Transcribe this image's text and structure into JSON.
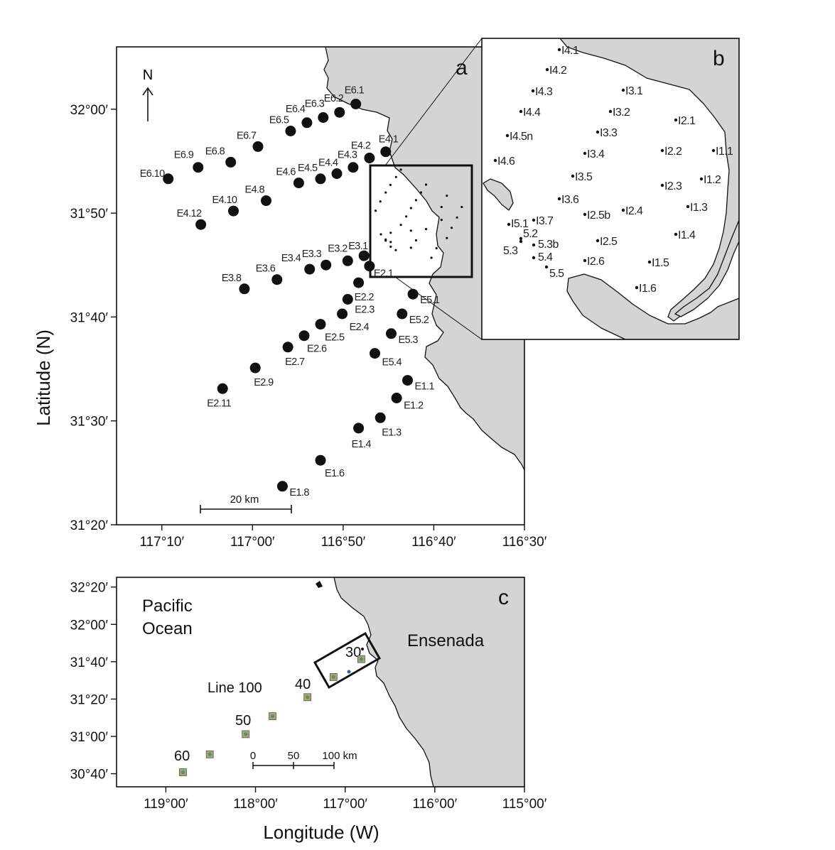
{
  "panel_a": {
    "label": "a",
    "north": "N",
    "ylabel": "Latitude (N)",
    "lat_ticks": [
      "32°00′",
      "31°50′",
      "31°40′",
      "31°30′",
      "31°20′"
    ],
    "lon_ticks": [
      "117°10′",
      "117°00′",
      "116°50′",
      "116°40′",
      "116°30′"
    ],
    "scale_label": "20 km",
    "stations": [
      {
        "id": "E6.1",
        "lon": -116.81,
        "lat": 32.0083
      },
      {
        "id": "E6.2",
        "lon": -116.84,
        "lat": 31.995
      },
      {
        "id": "E6.3",
        "lon": -116.87,
        "lat": 31.9867
      },
      {
        "id": "E6.4",
        "lon": -116.9,
        "lat": 31.9783
      },
      {
        "id": "E6.5",
        "lon": -116.93,
        "lat": 31.965
      },
      {
        "id": "E6.7",
        "lon": -116.99,
        "lat": 31.94
      },
      {
        "id": "E6.8",
        "lon": -117.04,
        "lat": 31.915
      },
      {
        "id": "E6.9",
        "lon": -117.1,
        "lat": 31.9067
      },
      {
        "id": "E6.10",
        "lon": -117.155,
        "lat": 31.8883
      },
      {
        "id": "E4.1",
        "lon": -116.755,
        "lat": 31.9317
      },
      {
        "id": "E4.2",
        "lon": -116.785,
        "lat": 31.9217
      },
      {
        "id": "E4.3",
        "lon": -116.815,
        "lat": 31.9067
      },
      {
        "id": "E4.4",
        "lon": -116.845,
        "lat": 31.8967
      },
      {
        "id": "E4.5",
        "lon": -116.875,
        "lat": 31.8883
      },
      {
        "id": "E4.6",
        "lon": -116.915,
        "lat": 31.8817
      },
      {
        "id": "E4.8",
        "lon": -116.975,
        "lat": 31.8533
      },
      {
        "id": "E4.10",
        "lon": -117.035,
        "lat": 31.8367
      },
      {
        "id": "E4.12",
        "lon": -117.095,
        "lat": 31.815
      },
      {
        "id": "E3.1",
        "lon": -116.795,
        "lat": 31.765
      },
      {
        "id": "E3.2",
        "lon": -116.825,
        "lat": 31.7567
      },
      {
        "id": "E3.3",
        "lon": -116.865,
        "lat": 31.75
      },
      {
        "id": "E3.4",
        "lon": -116.895,
        "lat": 31.7433
      },
      {
        "id": "E3.6",
        "lon": -116.955,
        "lat": 31.7267
      },
      {
        "id": "E3.8",
        "lon": -117.015,
        "lat": 31.7117
      },
      {
        "id": "E2.1",
        "lon": -116.785,
        "lat": 31.7483
      },
      {
        "id": "E2.2",
        "lon": -116.805,
        "lat": 31.7217
      },
      {
        "id": "E2.3",
        "lon": -116.825,
        "lat": 31.695
      },
      {
        "id": "E2.4",
        "lon": -116.835,
        "lat": 31.6717
      },
      {
        "id": "E2.5",
        "lon": -116.875,
        "lat": 31.655
      },
      {
        "id": "E2.6",
        "lon": -116.905,
        "lat": 31.6367
      },
      {
        "id": "E2.7",
        "lon": -116.935,
        "lat": 31.6183
      },
      {
        "id": "E2.9",
        "lon": -116.995,
        "lat": 31.585
      },
      {
        "id": "E2.11",
        "lon": -117.055,
        "lat": 31.5517
      },
      {
        "id": "E5.1",
        "lon": -116.705,
        "lat": 31.7033
      },
      {
        "id": "E5.2",
        "lon": -116.725,
        "lat": 31.6717
      },
      {
        "id": "E5.3",
        "lon": -116.745,
        "lat": 31.64
      },
      {
        "id": "E5.4",
        "lon": -116.775,
        "lat": 31.6083
      },
      {
        "id": "E1.1",
        "lon": -116.715,
        "lat": 31.565
      },
      {
        "id": "E1.2",
        "lon": -116.735,
        "lat": 31.5367
      },
      {
        "id": "E1.3",
        "lon": -116.765,
        "lat": 31.505
      },
      {
        "id": "E1.4",
        "lon": -116.805,
        "lat": 31.4883
      },
      {
        "id": "E1.6",
        "lon": -116.875,
        "lat": 31.4367
      },
      {
        "id": "E1.8",
        "lon": -116.945,
        "lat": 31.395
      }
    ]
  },
  "panel_b": {
    "label": "b",
    "stations": [
      {
        "id": "I4.1",
        "bx": 787,
        "by": 70
      },
      {
        "id": "I4.2",
        "bx": 770,
        "by": 98
      },
      {
        "id": "I4.3",
        "bx": 750,
        "by": 128
      },
      {
        "id": "I4.4",
        "bx": 733,
        "by": 157
      },
      {
        "id": "I4.5n",
        "bx": 714,
        "by": 191
      },
      {
        "id": "I4.6",
        "bx": 697,
        "by": 226
      },
      {
        "id": "I3.1",
        "bx": 877,
        "by": 127
      },
      {
        "id": "I3.2",
        "bx": 859,
        "by": 157
      },
      {
        "id": "I3.3",
        "bx": 841,
        "by": 186
      },
      {
        "id": "I3.4",
        "bx": 823,
        "by": 216
      },
      {
        "id": "I3.5",
        "bx": 806,
        "by": 248
      },
      {
        "id": "I3.6",
        "bx": 787,
        "by": 280
      },
      {
        "id": "I3.7",
        "bx": 751,
        "by": 310
      },
      {
        "id": "I2.1",
        "bx": 951,
        "by": 169
      },
      {
        "id": "I2.2",
        "bx": 932,
        "by": 212
      },
      {
        "id": "I2.3",
        "bx": 932,
        "by": 261
      },
      {
        "id": "I2.4",
        "bx": 877,
        "by": 296
      },
      {
        "id": "I2.5b",
        "bx": 823,
        "by": 302
      },
      {
        "id": "I2.5",
        "bx": 841,
        "by": 339
      },
      {
        "id": "I2.6",
        "bx": 823,
        "by": 367
      },
      {
        "id": "I1.1",
        "bx": 1004,
        "by": 212
      },
      {
        "id": "I1.2",
        "bx": 987,
        "by": 252
      },
      {
        "id": "I1.3",
        "bx": 968,
        "by": 291
      },
      {
        "id": "I1.4",
        "bx": 951,
        "by": 330
      },
      {
        "id": "I1.5",
        "bx": 914,
        "by": 369
      },
      {
        "id": "I1.6",
        "bx": 896,
        "by": 405
      },
      {
        "id": "I5.1",
        "bx": 716,
        "by": 316
      },
      {
        "id": "5.2",
        "bx": 733,
        "by": 336
      },
      {
        "id": "5.3",
        "bx": 733,
        "by": 340
      },
      {
        "id": "5.3b",
        "bx": 751,
        "by": 345
      },
      {
        "id": "5.4",
        "bx": 751,
        "by": 363
      },
      {
        "id": "5.5",
        "bx": 769,
        "by": 376
      }
    ]
  },
  "panel_c": {
    "label": "c",
    "ocean_label_1": "Pacific",
    "ocean_label_2": "Ocean",
    "city_label": "Ensenada",
    "line_label": "Line 100",
    "xlabel": "Longitude (W)",
    "lat_ticks": [
      "32°20′",
      "32°00′",
      "31°40′",
      "31°20′",
      "31°00′",
      "30°40′"
    ],
    "lon_ticks": [
      "119°00′",
      "118°00′",
      "117°00′",
      "116°00′",
      "115°00′"
    ],
    "station_numbers": [
      "30",
      "40",
      "50",
      "60"
    ],
    "scale_labels": [
      "0",
      "50",
      "100 km"
    ],
    "stations": [
      {
        "lon": -116.82,
        "lat": 31.69
      },
      {
        "lon": -117.13,
        "lat": 31.53
      },
      {
        "lon": -117.42,
        "lat": 31.35
      },
      {
        "lon": -117.81,
        "lat": 31.18
      },
      {
        "lon": -118.11,
        "lat": 31.02
      },
      {
        "lon": -118.51,
        "lat": 30.84
      },
      {
        "lon": -118.81,
        "lat": 30.68
      }
    ],
    "station_colors": {
      "outer": "#b5a268",
      "inner": "#3a9a85"
    }
  }
}
